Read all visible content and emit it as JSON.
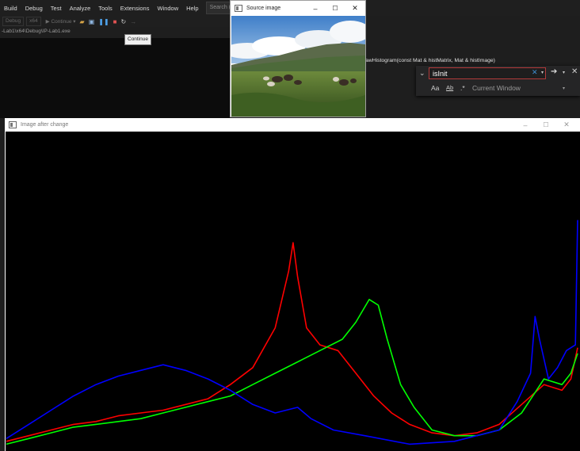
{
  "menubar": {
    "items": [
      "Build",
      "Debug",
      "Test",
      "Analyze",
      "Tools",
      "Extensions",
      "Window",
      "Help"
    ],
    "search_placeholder": "Search (Ctrl+"
  },
  "toolbar": {
    "config": "Debug",
    "platform": "x64",
    "continue_label": "▶ Continue ▾"
  },
  "path_text": "-Lab1\\x64\\Debug\\IP-Lab1.exe",
  "tooltip_text": "Continue",
  "editor": {
    "function_signature": "awHistogram(const Mat & histMatrix, Mat & histImage)"
  },
  "find_widget": {
    "query": "isInit",
    "case_option": "Aa",
    "word_option": "Ab",
    "regex_option": ".*",
    "scope": "Current Window"
  },
  "source_window": {
    "title": "Source image"
  },
  "histogram_window": {
    "title": "Image after change"
  },
  "colors": {
    "series_red": "#ff0000",
    "series_green": "#00ff00",
    "series_blue": "#0000ff",
    "find_border": "#b13a3a",
    "canvas_background": "#000000"
  },
  "chart_data": {
    "type": "line",
    "title": "",
    "x_range": [
      0,
      255
    ],
    "series": [
      {
        "color": "#ff0000",
        "values": [
          [
            0,
            2
          ],
          [
            10,
            4
          ],
          [
            20,
            6
          ],
          [
            30,
            8
          ],
          [
            40,
            9
          ],
          [
            50,
            11
          ],
          [
            60,
            12
          ],
          [
            70,
            13
          ],
          [
            80,
            15
          ],
          [
            90,
            17
          ],
          [
            100,
            22
          ],
          [
            110,
            28
          ],
          [
            120,
            42
          ],
          [
            126,
            62
          ],
          [
            128,
            72
          ],
          [
            130,
            60
          ],
          [
            134,
            42
          ],
          [
            140,
            36
          ],
          [
            148,
            34
          ],
          [
            156,
            26
          ],
          [
            164,
            18
          ],
          [
            172,
            12
          ],
          [
            180,
            8
          ],
          [
            190,
            5
          ],
          [
            200,
            4
          ],
          [
            210,
            5
          ],
          [
            220,
            8
          ],
          [
            230,
            15
          ],
          [
            240,
            22
          ],
          [
            248,
            20
          ],
          [
            252,
            24
          ],
          [
            255,
            35
          ]
        ]
      },
      {
        "color": "#00ff00",
        "values": [
          [
            0,
            1
          ],
          [
            10,
            3
          ],
          [
            20,
            5
          ],
          [
            30,
            7
          ],
          [
            40,
            8
          ],
          [
            50,
            9
          ],
          [
            60,
            10
          ],
          [
            70,
            12
          ],
          [
            80,
            14
          ],
          [
            90,
            16
          ],
          [
            100,
            18
          ],
          [
            110,
            22
          ],
          [
            120,
            26
          ],
          [
            130,
            30
          ],
          [
            140,
            34
          ],
          [
            150,
            38
          ],
          [
            156,
            44
          ],
          [
            162,
            52
          ],
          [
            166,
            50
          ],
          [
            170,
            38
          ],
          [
            176,
            22
          ],
          [
            182,
            14
          ],
          [
            190,
            6
          ],
          [
            200,
            4
          ],
          [
            210,
            4
          ],
          [
            220,
            6
          ],
          [
            230,
            12
          ],
          [
            240,
            24
          ],
          [
            248,
            22
          ],
          [
            252,
            26
          ],
          [
            255,
            33
          ]
        ]
      },
      {
        "color": "#0000ff",
        "values": [
          [
            0,
            3
          ],
          [
            10,
            8
          ],
          [
            20,
            13
          ],
          [
            30,
            18
          ],
          [
            40,
            22
          ],
          [
            50,
            25
          ],
          [
            60,
            27
          ],
          [
            70,
            29
          ],
          [
            80,
            27
          ],
          [
            90,
            24
          ],
          [
            100,
            20
          ],
          [
            110,
            15
          ],
          [
            120,
            12
          ],
          [
            130,
            14
          ],
          [
            136,
            10
          ],
          [
            146,
            6
          ],
          [
            160,
            4
          ],
          [
            180,
            1
          ],
          [
            200,
            2
          ],
          [
            220,
            6
          ],
          [
            228,
            16
          ],
          [
            234,
            26
          ],
          [
            236,
            46
          ],
          [
            238,
            38
          ],
          [
            242,
            24
          ],
          [
            246,
            28
          ],
          [
            250,
            34
          ],
          [
            254,
            36
          ],
          [
            255,
            80
          ]
        ]
      }
    ]
  }
}
